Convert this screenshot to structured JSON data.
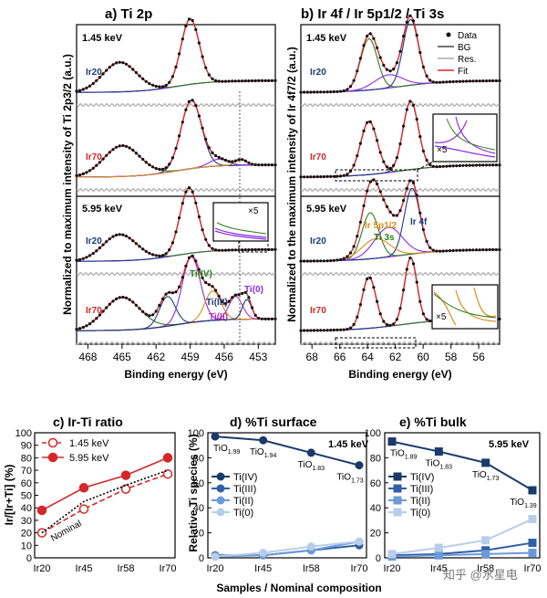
{
  "figure": {
    "colors": {
      "data": "#111111",
      "bg": "#444444",
      "res": "#aaaaaa",
      "fit": "#d62728",
      "red": "#d62728",
      "blue": "#1f3a7a",
      "green": "#2e7d1e",
      "purple": "#8a2be2",
      "orange": "#d98c1a",
      "navy": "#1a3a6b"
    },
    "xlabel_common": "Samples / Nominal composition",
    "watermark": "知乎 @水星电"
  },
  "chart_data": [
    {
      "panel": "a",
      "type": "line",
      "title": "a) Ti 2p",
      "ylabel": "Normalized to maximum intensity of Ti 2p3/2 (a.u.)",
      "xlabel": "Binding energy (eV)",
      "xlim": [
        469,
        451.5
      ],
      "xticks": [
        "468",
        "465",
        "462",
        "459",
        "456",
        "453"
      ],
      "xtick_values": [
        468,
        465,
        462,
        459,
        456,
        453
      ],
      "energy_labels": {
        "top": "1.45 keV",
        "bottom": "5.95 keV"
      },
      "rows": [
        {
          "sample": "Ir20",
          "peaks": [
            [
              465.2,
              0.45,
              1.5
            ],
            [
              459.0,
              1.0,
              0.8
            ]
          ]
        },
        {
          "sample": "Ir70",
          "peaks": [
            [
              465.0,
              0.45,
              1.6
            ],
            [
              458.9,
              1.0,
              0.9
            ],
            [
              456.5,
              0.1,
              0.8
            ],
            [
              454.5,
              0.08,
              0.5
            ]
          ]
        },
        {
          "sample": "Ir20",
          "peaks": [
            [
              465.2,
              0.4,
              1.5
            ],
            [
              459.1,
              1.0,
              0.8
            ]
          ]
        },
        {
          "sample": "Ir70",
          "peaks": [
            [
              465.0,
              0.5,
              1.6
            ],
            [
              461.0,
              0.45,
              0.7
            ],
            [
              458.9,
              1.0,
              0.8
            ],
            [
              457.0,
              0.45,
              0.7
            ],
            [
              455.0,
              0.35,
              0.6
            ],
            [
              454.0,
              0.3,
              0.4
            ]
          ]
        }
      ],
      "annotations": {
        "tiiv": "Ti(IV)",
        "tiiii": "Ti(III)",
        "tiii": "Ti(II)",
        "ti0": "Ti(0)",
        "zoom": "×5"
      }
    },
    {
      "panel": "b",
      "type": "line",
      "title": "b) Ir 4f / Ir 5p1/2 / Ti 3s",
      "ylabel": "Normalized to the maximum intensity of Ir 4f7/2 (a.u.)",
      "xlabel": "Binding energy (eV)",
      "xlim": [
        68.8,
        54.5
      ],
      "xticks": [
        "68",
        "66",
        "64",
        "62",
        "60",
        "58",
        "56"
      ],
      "xtick_values": [
        68,
        66,
        64,
        62,
        60,
        58,
        56
      ],
      "energy_labels": {
        "top": "1.45 keV",
        "bottom": "5.95 keV"
      },
      "rows": [
        {
          "sample": "Ir20",
          "peaks": [
            [
              63.9,
              0.78,
              0.6
            ],
            [
              60.9,
              1.0,
              0.55
            ],
            [
              62.5,
              0.2,
              1.0
            ]
          ]
        },
        {
          "sample": "Ir70",
          "peaks": [
            [
              63.9,
              0.78,
              0.6
            ],
            [
              60.9,
              1.0,
              0.55
            ]
          ]
        },
        {
          "sample": "Ir20",
          "peaks": [
            [
              63.8,
              0.7,
              0.6
            ],
            [
              60.8,
              1.0,
              0.55
            ],
            [
              62.5,
              0.45,
              1.0
            ],
            [
              63.4,
              0.3,
              1.0
            ]
          ]
        },
        {
          "sample": "Ir70",
          "peaks": [
            [
              63.9,
              0.78,
              0.5
            ],
            [
              60.9,
              1.0,
              0.45
            ]
          ]
        }
      ],
      "legend": [
        "Data",
        "BG",
        "Res.",
        "Fit"
      ],
      "annotations": {
        "ir5p": "Ir 5p1/2",
        "ti3s": "Ti 3s",
        "ir4f": "Ir 4f",
        "zoom": "×5"
      }
    },
    {
      "panel": "c",
      "type": "line",
      "title": "c) Ir-Ti ratio",
      "ylabel": "Ir/[Ir+Ti] (%)",
      "categories": [
        "Ir20",
        "Ir45",
        "Ir58",
        "Ir70"
      ],
      "ylim": [
        0,
        100
      ],
      "yticks": [
        "0",
        "10",
        "20",
        "30",
        "40",
        "50",
        "60",
        "70",
        "80",
        "90",
        "100"
      ],
      "series": [
        {
          "name": "1.45 keV",
          "values": [
            20,
            39,
            55,
            67
          ],
          "style": "open-dashed"
        },
        {
          "name": "5.95 keV",
          "values": [
            38,
            56,
            66,
            80
          ],
          "style": "filled-solid"
        },
        {
          "name": "Nominal",
          "values": [
            20,
            45,
            58,
            70
          ],
          "style": "dotted"
        }
      ],
      "legend_labels": [
        "1.45 keV",
        "5.95 keV"
      ],
      "annotation": "Nominal"
    },
    {
      "panel": "d",
      "type": "line",
      "title": "d) %Ti surface",
      "ylabel": "Relative Ti species (%)",
      "categories": [
        "Ir20",
        "Ir45",
        "Ir58",
        "Ir70"
      ],
      "ylim": [
        0,
        100
      ],
      "yticks": [
        "0",
        "20",
        "40",
        "60",
        "80",
        "100"
      ],
      "energy": "1.45 keV",
      "series": [
        {
          "name": "Ti(IV)",
          "values": [
            97,
            94,
            84,
            74
          ]
        },
        {
          "name": "Ti(III)",
          "values": [
            2,
            2,
            6,
            10
          ]
        },
        {
          "name": "Ti(II)",
          "values": [
            1,
            2,
            6,
            13
          ]
        },
        {
          "name": "Ti(0)",
          "values": [
            1,
            4,
            9,
            13
          ]
        }
      ],
      "labels": [
        "TiO1.99",
        "TiO1.94",
        "TiO1.83",
        "TiO1.73"
      ]
    },
    {
      "panel": "e",
      "type": "line",
      "title": "e) %Ti bulk",
      "categories": [
        "Ir20",
        "Ir45",
        "Ir58",
        "Ir70"
      ],
      "ylim": [
        0,
        100
      ],
      "yticks": [
        "0",
        "20",
        "40",
        "60",
        "80",
        "100"
      ],
      "energy": "5.95 keV",
      "series": [
        {
          "name": "Ti(IV)",
          "values": [
            93,
            85,
            76,
            54
          ]
        },
        {
          "name": "Ti(III)",
          "values": [
            2,
            3,
            6,
            12
          ]
        },
        {
          "name": "Ti(II)",
          "values": [
            1,
            2,
            3,
            4
          ]
        },
        {
          "name": "Ti(0)",
          "values": [
            3,
            8,
            14,
            31
          ]
        }
      ],
      "labels": [
        "TiO1.89",
        "TiO1.83",
        "TiO1.73",
        "TiO1.39"
      ]
    }
  ]
}
